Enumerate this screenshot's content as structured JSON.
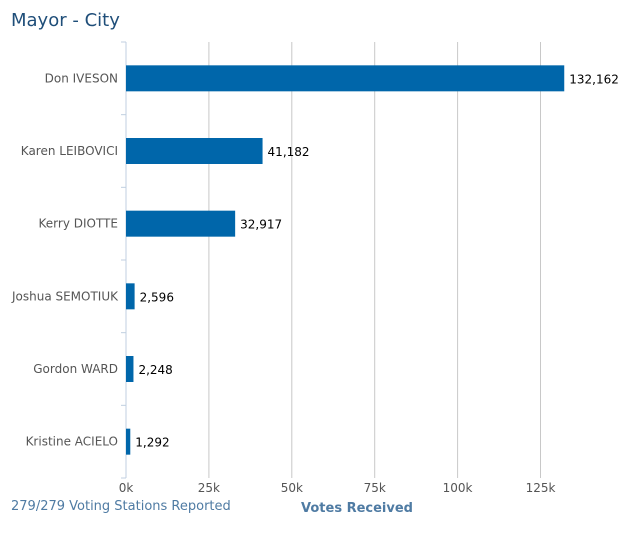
{
  "chart_data": {
    "type": "bar",
    "orientation": "horizontal",
    "title": "Mayor - City",
    "xlabel": "Votes Received",
    "categories": [
      "Don IVESON",
      "Karen LEIBOVICI",
      "Kerry DIOTTE",
      "Joshua SEMOTIUK",
      "Gordon WARD",
      "Kristine ACIELO"
    ],
    "values": [
      132162,
      41182,
      32917,
      2596,
      2248,
      1292
    ],
    "value_labels": [
      "132,162",
      "41,182",
      "32,917",
      "2,596",
      "2,248",
      "1,292"
    ],
    "xticks": [
      0,
      25000,
      50000,
      75000,
      100000,
      125000
    ],
    "xtick_labels": [
      "0k",
      "25k",
      "50k",
      "75k",
      "100k",
      "125k"
    ],
    "xlim": [
      0,
      145000
    ],
    "grid": true,
    "bar_color": "#0066aa"
  },
  "footer": {
    "status": "279/279 Voting Stations Reported"
  }
}
